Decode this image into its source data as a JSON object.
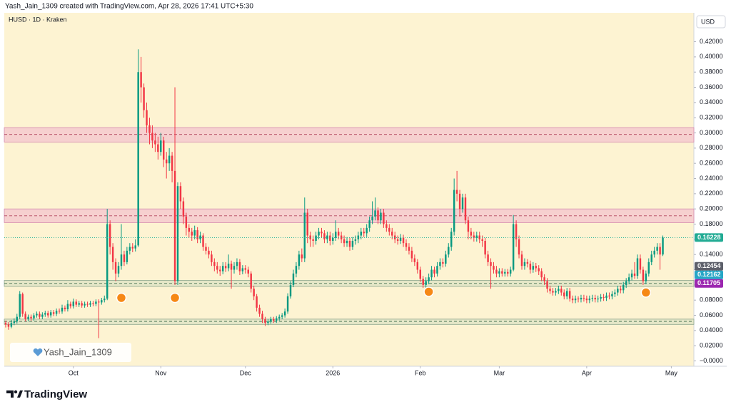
{
  "header": "Yash_Jain_1309 created with TradingView.com, Apr 28, 2026 17:41 UTC+5:30",
  "watermark": "Yash_Jain_1309",
  "footer": "TradingView",
  "chart_data": {
    "type": "candlestick",
    "title": "HUSD · 1D · Kraken",
    "currency": "USD",
    "up_color": "#089981",
    "down_color": "#f23645",
    "background": "#fdf3d2",
    "grid": false,
    "xlim": [
      -0.5,
      244
    ],
    "xticks": [
      {
        "value": 24,
        "label": "Oct"
      },
      {
        "value": 55,
        "label": "Nov"
      },
      {
        "value": 85,
        "label": "Dec"
      },
      {
        "value": 116,
        "label": "2026"
      },
      {
        "value": 147,
        "label": "Feb"
      },
      {
        "value": 175,
        "label": "Mar"
      },
      {
        "value": 206,
        "label": "Apr"
      },
      {
        "value": 236,
        "label": "May"
      }
    ],
    "ylim": [
      -0.007,
      0.458
    ],
    "yticks": [
      {
        "value": 0.42,
        "label": "0.42000"
      },
      {
        "value": 0.4,
        "label": "0.40000"
      },
      {
        "value": 0.38,
        "label": "0.38000"
      },
      {
        "value": 0.36,
        "label": "0.36000"
      },
      {
        "value": 0.34,
        "label": "0.34000"
      },
      {
        "value": 0.32,
        "label": "0.32000"
      },
      {
        "value": 0.3,
        "label": "0.30000"
      },
      {
        "value": 0.28,
        "label": "0.28000"
      },
      {
        "value": 0.26,
        "label": "0.26000"
      },
      {
        "value": 0.24,
        "label": "0.24000"
      },
      {
        "value": 0.22,
        "label": "0.22000"
      },
      {
        "value": 0.2,
        "label": "0.20000"
      },
      {
        "value": 0.18,
        "label": "0.18000"
      },
      {
        "value": 0.16,
        "label": "0.16000"
      },
      {
        "value": 0.14,
        "label": "0.14000"
      },
      {
        "value": 0.12,
        "label": "0.12000"
      },
      {
        "value": 0.1,
        "label": "0.10000"
      },
      {
        "value": 0.08,
        "label": "0.08000"
      },
      {
        "value": 0.06,
        "label": "0.06000"
      },
      {
        "value": 0.04,
        "label": "0.04000"
      },
      {
        "value": 0.02,
        "label": "0.02000"
      },
      {
        "value": 0,
        "label": "−0.0000"
      }
    ],
    "open": [
      0.05,
      0.048,
      0.045,
      0.05,
      0.052,
      0.058,
      0.088,
      0.062,
      0.055,
      0.058,
      0.056,
      0.06,
      0.062,
      0.058,
      0.061,
      0.063,
      0.06,
      0.064,
      0.062,
      0.066,
      0.065,
      0.07,
      0.068,
      0.075,
      0.072,
      0.078,
      0.074,
      0.076,
      0.073,
      0.075,
      0.074,
      0.076,
      0.075,
      0.078,
      0.077,
      0.08,
      0.082,
      0.18,
      0.15,
      0.13,
      0.115,
      0.125,
      0.14,
      0.13,
      0.145,
      0.15,
      0.148,
      0.152,
      0.38,
      0.36,
      0.33,
      0.31,
      0.3,
      0.29,
      0.285,
      0.275,
      0.29,
      0.265,
      0.26,
      0.27,
      0.25,
      0.105,
      0.23,
      0.21,
      0.19,
      0.175,
      0.17,
      0.165,
      0.172,
      0.16,
      0.165,
      0.15,
      0.145,
      0.14,
      0.13,
      0.125,
      0.12,
      0.118,
      0.125,
      0.122,
      0.128,
      0.12,
      0.125,
      0.13,
      0.118,
      0.122,
      0.12,
      0.115,
      0.095,
      0.085,
      0.07,
      0.062,
      0.055,
      0.05,
      0.052,
      0.055,
      0.053,
      0.056,
      0.058,
      0.06,
      0.065,
      0.085,
      0.1,
      0.115,
      0.125,
      0.14,
      0.135,
      0.195,
      0.165,
      0.16,
      0.158,
      0.165,
      0.17,
      0.168,
      0.16,
      0.165,
      0.158,
      0.162,
      0.17,
      0.165,
      0.16,
      0.155,
      0.158,
      0.15,
      0.158,
      0.16,
      0.165,
      0.17,
      0.168,
      0.175,
      0.185,
      0.19,
      0.198,
      0.185,
      0.195,
      0.18,
      0.175,
      0.17,
      0.165,
      0.16,
      0.158,
      0.162,
      0.155,
      0.15,
      0.145,
      0.135,
      0.13,
      0.12,
      0.108,
      0.1,
      0.105,
      0.11,
      0.12,
      0.115,
      0.125,
      0.13,
      0.128,
      0.14,
      0.15,
      0.17,
      0.225,
      0.22,
      0.2,
      0.215,
      0.185,
      0.17,
      0.165,
      0.162,
      0.165,
      0.16,
      0.158,
      0.14,
      0.13,
      0.125,
      0.12,
      0.115,
      0.118,
      0.115,
      0.117,
      0.115,
      0.12,
      0.18,
      0.16,
      0.14,
      0.125,
      0.13,
      0.128,
      0.12,
      0.125,
      0.122,
      0.118,
      0.11,
      0.105,
      0.095,
      0.092,
      0.09,
      0.092,
      0.095,
      0.09,
      0.085,
      0.092,
      0.082,
      0.08,
      0.082,
      0.081,
      0.083,
      0.082,
      0.08,
      0.082,
      0.083,
      0.081,
      0.082,
      0.084,
      0.083,
      0.086,
      0.085,
      0.088,
      0.09,
      0.095,
      0.093,
      0.1,
      0.105,
      0.11,
      0.115,
      0.112,
      0.135,
      0.12,
      0.105,
      0.115,
      0.13,
      0.14,
      0.145,
      0.15,
      0.14
    ],
    "high": [
      0.053,
      0.051,
      0.054,
      0.056,
      0.062,
      0.092,
      0.09,
      0.065,
      0.061,
      0.061,
      0.063,
      0.065,
      0.065,
      0.064,
      0.066,
      0.066,
      0.067,
      0.067,
      0.069,
      0.069,
      0.074,
      0.073,
      0.08,
      0.078,
      0.082,
      0.081,
      0.079,
      0.079,
      0.078,
      0.078,
      0.079,
      0.079,
      0.081,
      0.081,
      0.083,
      0.086,
      0.2,
      0.185,
      0.155,
      0.135,
      0.13,
      0.18,
      0.145,
      0.15,
      0.155,
      0.155,
      0.16,
      0.41,
      0.4,
      0.365,
      0.34,
      0.32,
      0.31,
      0.3,
      0.295,
      0.3,
      0.295,
      0.275,
      0.28,
      0.275,
      0.36,
      0.235,
      0.235,
      0.215,
      0.195,
      0.18,
      0.175,
      0.178,
      0.176,
      0.17,
      0.168,
      0.155,
      0.15,
      0.145,
      0.135,
      0.13,
      0.125,
      0.13,
      0.13,
      0.14,
      0.132,
      0.13,
      0.135,
      0.134,
      0.126,
      0.126,
      0.124,
      0.118,
      0.099,
      0.088,
      0.074,
      0.066,
      0.058,
      0.055,
      0.058,
      0.058,
      0.059,
      0.061,
      0.063,
      0.069,
      0.089,
      0.105,
      0.12,
      0.13,
      0.145,
      0.148,
      0.215,
      0.2,
      0.17,
      0.165,
      0.17,
      0.175,
      0.175,
      0.172,
      0.17,
      0.17,
      0.168,
      0.185,
      0.175,
      0.17,
      0.165,
      0.163,
      0.162,
      0.163,
      0.165,
      0.17,
      0.175,
      0.175,
      0.18,
      0.19,
      0.21,
      0.215,
      0.202,
      0.2,
      0.2,
      0.185,
      0.18,
      0.175,
      0.17,
      0.165,
      0.167,
      0.166,
      0.16,
      0.155,
      0.15,
      0.14,
      0.134,
      0.124,
      0.112,
      0.11,
      0.115,
      0.125,
      0.124,
      0.13,
      0.135,
      0.135,
      0.145,
      0.155,
      0.175,
      0.24,
      0.25,
      0.225,
      0.22,
      0.22,
      0.19,
      0.175,
      0.17,
      0.17,
      0.17,
      0.165,
      0.162,
      0.145,
      0.135,
      0.13,
      0.125,
      0.122,
      0.122,
      0.121,
      0.121,
      0.124,
      0.192,
      0.185,
      0.165,
      0.145,
      0.135,
      0.134,
      0.132,
      0.13,
      0.129,
      0.126,
      0.122,
      0.114,
      0.109,
      0.099,
      0.096,
      0.096,
      0.099,
      0.099,
      0.094,
      0.096,
      0.096,
      0.086,
      0.086,
      0.085,
      0.087,
      0.087,
      0.086,
      0.086,
      0.087,
      0.087,
      0.086,
      0.088,
      0.088,
      0.09,
      0.09,
      0.092,
      0.094,
      0.099,
      0.099,
      0.104,
      0.109,
      0.115,
      0.12,
      0.13,
      0.14,
      0.14,
      0.124,
      0.119,
      0.135,
      0.145,
      0.15,
      0.155,
      0.155,
      0.165
    ],
    "low": [
      0.044,
      0.041,
      0.043,
      0.047,
      0.049,
      0.055,
      0.058,
      0.052,
      0.052,
      0.053,
      0.053,
      0.057,
      0.055,
      0.055,
      0.058,
      0.057,
      0.057,
      0.059,
      0.059,
      0.062,
      0.062,
      0.065,
      0.065,
      0.069,
      0.069,
      0.071,
      0.071,
      0.07,
      0.07,
      0.071,
      0.071,
      0.072,
      0.072,
      0.03,
      0.074,
      0.077,
      0.08,
      0.14,
      0.12,
      0.105,
      0.11,
      0.12,
      0.125,
      0.127,
      0.14,
      0.143,
      0.144,
      0.15,
      0.34,
      0.32,
      0.3,
      0.285,
      0.28,
      0.275,
      0.265,
      0.27,
      0.255,
      0.24,
      0.25,
      0.235,
      0.1,
      0.1,
      0.2,
      0.18,
      0.165,
      0.162,
      0.158,
      0.16,
      0.155,
      0.155,
      0.145,
      0.14,
      0.135,
      0.125,
      0.118,
      0.115,
      0.112,
      0.114,
      0.117,
      0.118,
      0.095,
      0.115,
      0.12,
      0.113,
      0.114,
      0.115,
      0.11,
      0.09,
      0.08,
      0.065,
      0.058,
      0.05,
      0.046,
      0.047,
      0.049,
      0.05,
      0.05,
      0.053,
      0.055,
      0.057,
      0.062,
      0.082,
      0.097,
      0.11,
      0.12,
      0.13,
      0.13,
      0.155,
      0.15,
      0.15,
      0.153,
      0.16,
      0.162,
      0.155,
      0.155,
      0.152,
      0.153,
      0.158,
      0.16,
      0.155,
      0.15,
      0.15,
      0.145,
      0.146,
      0.153,
      0.155,
      0.16,
      0.163,
      0.163,
      0.17,
      0.18,
      0.185,
      0.18,
      0.18,
      0.175,
      0.17,
      0.165,
      0.16,
      0.155,
      0.153,
      0.154,
      0.15,
      0.145,
      0.14,
      0.13,
      0.125,
      0.115,
      0.104,
      0.096,
      0.096,
      0.101,
      0.106,
      0.11,
      0.111,
      0.12,
      0.123,
      0.124,
      0.136,
      0.145,
      0.165,
      0.21,
      0.19,
      0.195,
      0.18,
      0.16,
      0.16,
      0.157,
      0.157,
      0.155,
      0.15,
      0.135,
      0.125,
      0.095,
      0.115,
      0.11,
      0.11,
      0.111,
      0.111,
      0.111,
      0.111,
      0.118,
      0.15,
      0.135,
      0.12,
      0.12,
      0.123,
      0.115,
      0.116,
      0.117,
      0.113,
      0.105,
      0.1,
      0.09,
      0.088,
      0.086,
      0.086,
      0.088,
      0.086,
      0.081,
      0.081,
      0.078,
      0.076,
      0.076,
      0.077,
      0.077,
      0.078,
      0.076,
      0.076,
      0.078,
      0.077,
      0.077,
      0.078,
      0.079,
      0.079,
      0.081,
      0.081,
      0.084,
      0.086,
      0.089,
      0.089,
      0.096,
      0.101,
      0.106,
      0.108,
      0.108,
      0.115,
      0.1,
      0.101,
      0.111,
      0.126,
      0.136,
      0.14,
      0.12,
      0.138
    ],
    "close": [
      0.048,
      0.045,
      0.05,
      0.052,
      0.058,
      0.088,
      0.062,
      0.055,
      0.058,
      0.056,
      0.06,
      0.062,
      0.058,
      0.061,
      0.063,
      0.06,
      0.064,
      0.062,
      0.066,
      0.065,
      0.07,
      0.068,
      0.075,
      0.072,
      0.078,
      0.074,
      0.076,
      0.073,
      0.075,
      0.074,
      0.076,
      0.075,
      0.078,
      0.077,
      0.08,
      0.082,
      0.18,
      0.15,
      0.13,
      0.115,
      0.125,
      0.14,
      0.13,
      0.145,
      0.15,
      0.148,
      0.152,
      0.38,
      0.36,
      0.33,
      0.31,
      0.3,
      0.29,
      0.285,
      0.275,
      0.29,
      0.265,
      0.26,
      0.27,
      0.25,
      0.105,
      0.23,
      0.21,
      0.19,
      0.175,
      0.17,
      0.165,
      0.172,
      0.16,
      0.165,
      0.15,
      0.145,
      0.14,
      0.13,
      0.125,
      0.12,
      0.118,
      0.125,
      0.122,
      0.128,
      0.12,
      0.125,
      0.13,
      0.118,
      0.122,
      0.12,
      0.115,
      0.095,
      0.085,
      0.07,
      0.062,
      0.055,
      0.05,
      0.052,
      0.055,
      0.053,
      0.056,
      0.058,
      0.06,
      0.065,
      0.085,
      0.1,
      0.115,
      0.125,
      0.14,
      0.135,
      0.195,
      0.165,
      0.16,
      0.158,
      0.165,
      0.17,
      0.168,
      0.16,
      0.165,
      0.158,
      0.162,
      0.17,
      0.165,
      0.16,
      0.155,
      0.158,
      0.15,
      0.158,
      0.16,
      0.165,
      0.17,
      0.168,
      0.175,
      0.185,
      0.19,
      0.198,
      0.185,
      0.195,
      0.18,
      0.175,
      0.17,
      0.165,
      0.16,
      0.158,
      0.162,
      0.155,
      0.15,
      0.145,
      0.135,
      0.13,
      0.12,
      0.108,
      0.1,
      0.105,
      0.11,
      0.12,
      0.115,
      0.125,
      0.13,
      0.128,
      0.14,
      0.15,
      0.17,
      0.225,
      0.22,
      0.2,
      0.215,
      0.185,
      0.17,
      0.165,
      0.162,
      0.165,
      0.16,
      0.158,
      0.14,
      0.13,
      0.125,
      0.12,
      0.115,
      0.118,
      0.115,
      0.117,
      0.115,
      0.12,
      0.18,
      0.16,
      0.14,
      0.125,
      0.13,
      0.128,
      0.12,
      0.125,
      0.122,
      0.118,
      0.11,
      0.105,
      0.095,
      0.092,
      0.09,
      0.092,
      0.095,
      0.09,
      0.085,
      0.092,
      0.082,
      0.08,
      0.082,
      0.081,
      0.083,
      0.082,
      0.08,
      0.082,
      0.083,
      0.081,
      0.082,
      0.084,
      0.083,
      0.086,
      0.085,
      0.088,
      0.09,
      0.095,
      0.093,
      0.1,
      0.105,
      0.11,
      0.115,
      0.112,
      0.135,
      0.12,
      0.105,
      0.115,
      0.13,
      0.14,
      0.145,
      0.15,
      0.14,
      0.16228
    ],
    "zones": [
      {
        "low": 0.288,
        "high": 0.307,
        "line": 0.298,
        "fill": "#f4c9cf",
        "stroke": "#d58ab0"
      },
      {
        "low": 0.182,
        "high": 0.2,
        "line": 0.191,
        "fill": "#f4c9cf",
        "stroke": "#d58ab0"
      },
      {
        "low": 0.098,
        "high": 0.106,
        "line": 0.102,
        "fill": "#dfe3c6",
        "stroke": "#8fa88f"
      },
      {
        "low": 0.048,
        "high": 0.055,
        "line": 0.052,
        "fill": "#dfe3c6",
        "stroke": "#8fa88f"
      }
    ],
    "markers": [
      {
        "x": 41,
        "y": 0.083,
        "color": "#f57c00"
      },
      {
        "x": 60,
        "y": 0.083,
        "color": "#f57c00"
      },
      {
        "x": 150,
        "y": 0.091,
        "color": "#f57c00"
      },
      {
        "x": 227,
        "y": 0.09,
        "color": "#f57c00"
      }
    ],
    "price_labels": [
      {
        "value": 0.16228,
        "color": "#22ab94"
      },
      {
        "value": 0.12454,
        "color": "#5d606b"
      },
      {
        "value": 0.12162,
        "color": "#26a6c6"
      },
      {
        "value": 0.11705,
        "color": "#9c27b0"
      }
    ]
  }
}
